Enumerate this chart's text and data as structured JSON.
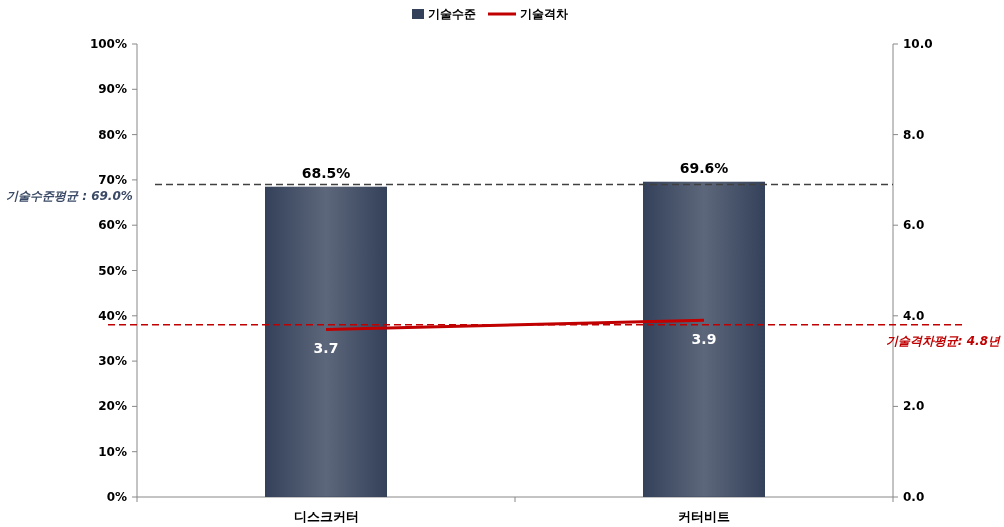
{
  "chart_data": {
    "type": "bar",
    "categories": [
      "디스크커터",
      "커터비트"
    ],
    "series": [
      {
        "name": "기술수준",
        "color": "#34415a",
        "values": [
          68.5,
          69.6
        ],
        "value_labels": [
          "68.5%",
          "69.6%"
        ]
      },
      {
        "name": "기술격차",
        "type": "line",
        "axis": "y2",
        "color": "#c00000",
        "values": [
          3.7,
          3.9
        ],
        "value_labels": [
          "3.7",
          "3.9"
        ]
      }
    ],
    "ylim": [
      0,
      100
    ],
    "yticks": [
      {
        "value": 0,
        "label": "0%"
      },
      {
        "value": 10,
        "label": "10%"
      },
      {
        "value": 20,
        "label": "20%"
      },
      {
        "value": 30,
        "label": "30%"
      },
      {
        "value": 40,
        "label": "40%"
      },
      {
        "value": 50,
        "label": "50%"
      },
      {
        "value": 60,
        "label": "60%"
      },
      {
        "value": 70,
        "label": "70%"
      },
      {
        "value": 80,
        "label": "80%"
      },
      {
        "value": 90,
        "label": "90%"
      },
      {
        "value": 100,
        "label": "100%"
      }
    ],
    "y2lim": [
      0,
      10
    ],
    "y2ticks": [
      {
        "value": 0,
        "label": "0.0"
      },
      {
        "value": 2,
        "label": "2.0"
      },
      {
        "value": 4,
        "label": "4.0"
      },
      {
        "value": 6,
        "label": "6.0"
      },
      {
        "value": 8,
        "label": "8.0"
      },
      {
        "value": 10,
        "label": "10.0"
      }
    ],
    "ref_lines": [
      {
        "axis": "y",
        "value": 69.0,
        "label": "기술수준평균 : 69.0%",
        "color": "#404040",
        "line_style": "dashed"
      },
      {
        "axis": "y2",
        "value": 3.8,
        "color": "#c00000",
        "line_style": "dashed"
      }
    ],
    "annotations": [
      "기술격차평균: 4.8년"
    ],
    "legend": "top",
    "grid": false,
    "marker": "none"
  }
}
